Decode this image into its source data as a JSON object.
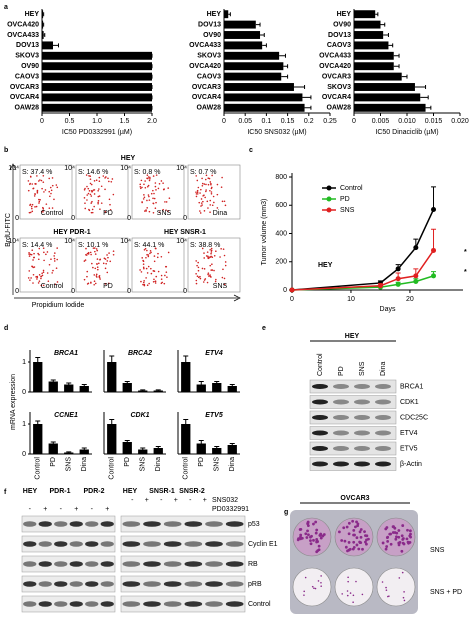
{
  "panel_labels": [
    "a",
    "b",
    "c",
    "d",
    "e",
    "f",
    "g"
  ],
  "chart_data": [
    {
      "type": "bar",
      "orientation": "horizontal",
      "xlabel": "IC50 PD0332991 (µM)",
      "categories": [
        "HEY",
        "OVCA420",
        "OVCA433",
        "DOV13",
        "SKOV3",
        "OV90",
        "CAOV3",
        "OVCAR3",
        "OVCAR4",
        "OAW28"
      ],
      "values": [
        0.02,
        0.02,
        0.03,
        0.2,
        2.0,
        2.0,
        2.0,
        2.0,
        2.0,
        2.0
      ],
      "errors": [
        0.01,
        0.01,
        0.02,
        0.1,
        0,
        0,
        0,
        0,
        0,
        0
      ],
      "color": "#000000",
      "xlim": [
        0,
        2.0
      ],
      "xticks": [
        0,
        0.5,
        {
          "value": 1.0,
          "label": "1.0"
        },
        1.5,
        {
          "value": 2.0,
          "label": "2.0"
        }
      ]
    },
    {
      "type": "bar",
      "orientation": "horizontal",
      "xlabel": "IC50 SNS032 (µM)",
      "categories": [
        "HEY",
        "DOV13",
        "OV90",
        "OVCA433",
        "SKOV3",
        "OVCA420",
        "CAOV3",
        "OVCAR3",
        "OVCAR4",
        "OAW28"
      ],
      "values": [
        0.01,
        0.075,
        0.085,
        0.09,
        0.13,
        0.14,
        0.135,
        0.165,
        0.185,
        0.19
      ],
      "errors": [
        0.005,
        0.01,
        0.01,
        0.01,
        0.015,
        0.01,
        0.015,
        0.025,
        0.02,
        0.015
      ],
      "color": "#000000",
      "xlim": [
        0,
        0.25
      ],
      "xticks": [
        0,
        0.05,
        0.1,
        0.15,
        0.2,
        0.25
      ]
    },
    {
      "type": "bar",
      "orientation": "horizontal",
      "xlabel": "IC50 Dinaciclib (µM)",
      "categories": [
        "HEY",
        "OV90",
        "DOV13",
        "CAOV3",
        "OVCA433",
        "OVCA420",
        "OVCAR3",
        "SKOV3",
        "OVCAR4",
        "OAW28"
      ],
      "values": [
        0.004,
        0.005,
        0.0055,
        0.0065,
        0.0075,
        0.0075,
        0.009,
        0.0115,
        0.0125,
        0.0135
      ],
      "errors": [
        0.0005,
        0.0008,
        0.001,
        0.0008,
        0.001,
        0.001,
        0.001,
        0.002,
        0.0015,
        0.001
      ],
      "color": "#000000",
      "xlim": [
        0,
        0.02
      ],
      "xticks": [
        0,
        0.005,
        {
          "value": 0.01,
          "label": "0.010"
        },
        0.015,
        {
          "value": 0.02,
          "label": "0.020"
        }
      ]
    },
    {
      "type": "line",
      "xlabel": "Days",
      "ylabel": "Tumor volume (mm3)",
      "annotations": [
        "HEY",
        "*",
        "*"
      ],
      "x": [
        0,
        15,
        18,
        21,
        24
      ],
      "xlim": [
        0,
        29
      ],
      "xticks": [
        0,
        10,
        20
      ],
      "ylim": [
        0,
        800
      ],
      "yticks": [
        0,
        200,
        400,
        600,
        800
      ],
      "series": [
        {
          "name": "Control",
          "color": "#000000",
          "values": [
            0,
            50,
            150,
            300,
            570
          ],
          "errors": [
            0,
            15,
            30,
            60,
            160
          ]
        },
        {
          "name": "PD",
          "color": "#22bb22",
          "values": [
            0,
            20,
            40,
            60,
            100
          ],
          "errors": [
            0,
            10,
            15,
            20,
            30
          ]
        },
        {
          "name": "SNS",
          "color": "#e02020",
          "values": [
            0,
            30,
            80,
            100,
            280
          ],
          "errors": [
            0,
            15,
            40,
            50,
            150
          ]
        }
      ]
    },
    {
      "type": "bar",
      "title": "BRCA1",
      "ylabel": "mRNA expression",
      "categories": [
        null,
        null,
        null,
        null
      ],
      "values": [
        1.0,
        0.35,
        0.25,
        0.2
      ],
      "errors": [
        0.15,
        0.05,
        0.05,
        0.05
      ],
      "color": "#000000",
      "ylim": [
        0,
        1.4
      ],
      "yticks": [
        0,
        1
      ]
    },
    {
      "type": "bar",
      "title": "BRCA2",
      "categories": [
        null,
        null,
        null,
        null
      ],
      "values": [
        1.0,
        0.3,
        0.05,
        0.05
      ],
      "errors": [
        0.2,
        0.05,
        0.02,
        0.02
      ],
      "color": "#000000",
      "ylim": [
        0,
        1.4
      ]
    },
    {
      "type": "bar",
      "title": "ETV4",
      "categories": [
        null,
        null,
        null,
        null
      ],
      "values": [
        1.0,
        0.25,
        0.3,
        0.2
      ],
      "errors": [
        0.2,
        0.1,
        0.05,
        0.05
      ],
      "color": "#000000",
      "ylim": [
        0,
        1.4
      ]
    },
    {
      "type": "bar",
      "title": "CCNE1",
      "categories": [
        "Control",
        "PD",
        "SNS",
        "Dina"
      ],
      "values": [
        1.0,
        0.35,
        0.05,
        0.15
      ],
      "errors": [
        0.1,
        0.05,
        0.02,
        0.05
      ],
      "color": "#000000",
      "ylim": [
        0,
        1.4
      ],
      "yticks": [
        0,
        1
      ]
    },
    {
      "type": "bar",
      "title": "CDK1",
      "categories": [
        "Control",
        "PD",
        "SNS",
        "Dina"
      ],
      "values": [
        1.0,
        0.4,
        0.15,
        0.2
      ],
      "errors": [
        0.15,
        0.05,
        0.05,
        0.05
      ],
      "color": "#000000",
      "ylim": [
        0,
        1.4
      ]
    },
    {
      "type": "bar",
      "title": "ETV5",
      "categories": [
        "Control",
        "PD",
        "SNS",
        "Dina"
      ],
      "values": [
        1.0,
        0.35,
        0.2,
        0.3
      ],
      "errors": [
        0.15,
        0.1,
        0.05,
        0.05
      ],
      "color": "#000000",
      "ylim": [
        0,
        1.4
      ]
    }
  ],
  "flow": {
    "title": "HEY",
    "y_axis": "BrdU-FITC",
    "x_axis": "Propidium Iodide",
    "tick_top": "10⁴",
    "tick_zero": "0",
    "top_panels": [
      {
        "s": "S: 37.4 %",
        "label": "Control"
      },
      {
        "s": "S: 14.6 %",
        "label": "PD"
      },
      {
        "s": "S: 0.8 %",
        "label": "SNS"
      },
      {
        "s": "S: 0.7 %",
        "label": "Dina"
      }
    ],
    "bottom_titles": [
      "HEY PDR-1",
      "HEY SNSR-1"
    ],
    "bottom_panels": [
      {
        "s": "S: 14.4 %",
        "label": "Control"
      },
      {
        "s": "S: 10.1 %",
        "label": "PD"
      },
      {
        "s": "S: 44.1 %"
      },
      {
        "s": "S: 38.8 %",
        "label": "SNS"
      }
    ]
  },
  "blot_e": {
    "title": "HEY",
    "lanes": [
      "Control",
      "PD",
      "SNS",
      "Dina"
    ],
    "proteins": [
      "BRCA1",
      "CDK1",
      "CDC25C",
      "ETV4",
      "ETV5",
      "β-Actin"
    ]
  },
  "blot_f": {
    "left_groups": [
      "HEY",
      "PDR-1",
      "PDR-2"
    ],
    "right_groups": [
      "HEY",
      "SNSR-1",
      "SNSR-2"
    ],
    "treatments": [
      "SNS032",
      "PD0332991"
    ],
    "right_sns_signs": [
      "-",
      "+",
      "-",
      "+",
      "-",
      "+"
    ],
    "left_pd_signs": [
      "-",
      "+",
      "-",
      "+",
      "-",
      "+"
    ],
    "proteins": [
      "p53",
      "Cyclin E1",
      "RB",
      "pRB",
      "Control"
    ]
  },
  "colony_g": {
    "title": "OVCAR3",
    "rows": [
      "SNS",
      "SNS + PD"
    ]
  }
}
